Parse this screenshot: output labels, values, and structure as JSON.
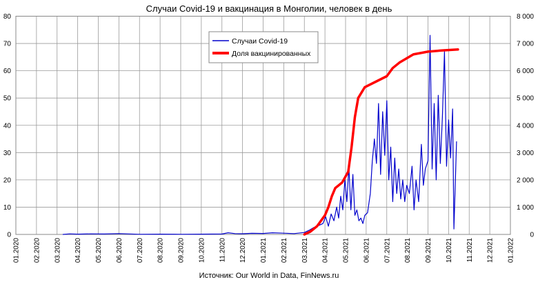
{
  "chart_data": {
    "type": "line",
    "title": "Случаи Covid-19 и вакцинация в Монголии, человек в день",
    "source": "Источник: Our World in Data, FinNews.ru",
    "grid": true,
    "legend_position": "top-center",
    "x_tick_labels": [
      "01.2020",
      "02.2020",
      "03.2020",
      "04.2020",
      "05.2020",
      "06.2020",
      "07.2020",
      "08.2020",
      "09.2020",
      "10.2020",
      "11.2020",
      "12.2020",
      "01.2021",
      "02.2021",
      "03.2021",
      "04.2021",
      "05.2021",
      "06.2021",
      "07.2021",
      "08.2021",
      "09.2021",
      "10.2021",
      "11.2021",
      "12.2021",
      "01.2022"
    ],
    "y_left": {
      "ylim": [
        0,
        80
      ],
      "ticks": [
        "0",
        "10",
        "20",
        "30",
        "40",
        "50",
        "60",
        "70",
        "80"
      ]
    },
    "y_right": {
      "ylim": [
        0,
        8000
      ],
      "ticks": [
        "0",
        "1 000",
        "2 000",
        "3 000",
        "4 000",
        "5 000",
        "6 000",
        "7 000",
        "8 000"
      ]
    },
    "series": [
      {
        "name": "Случаи Covid-19",
        "axis": "right",
        "color": "#0000cc",
        "points": [
          [
            "2020-03-10",
            0
          ],
          [
            "2020-03-20",
            20
          ],
          [
            "2020-04-01",
            10
          ],
          [
            "2020-04-20",
            20
          ],
          [
            "2020-05-10",
            15
          ],
          [
            "2020-06-01",
            30
          ],
          [
            "2020-07-01",
            5
          ],
          [
            "2020-08-01",
            10
          ],
          [
            "2020-09-01",
            5
          ],
          [
            "2020-10-01",
            10
          ],
          [
            "2020-11-01",
            15
          ],
          [
            "2020-11-10",
            60
          ],
          [
            "2020-11-20",
            30
          ],
          [
            "2020-12-01",
            25
          ],
          [
            "2020-12-15",
            40
          ],
          [
            "2021-01-01",
            35
          ],
          [
            "2021-01-15",
            60
          ],
          [
            "2021-02-01",
            45
          ],
          [
            "2021-02-15",
            30
          ],
          [
            "2021-03-01",
            70
          ],
          [
            "2021-03-08",
            150
          ],
          [
            "2021-03-15",
            250
          ],
          [
            "2021-03-22",
            320
          ],
          [
            "2021-03-29",
            400
          ],
          [
            "2021-04-02",
            650
          ],
          [
            "2021-04-06",
            300
          ],
          [
            "2021-04-10",
            750
          ],
          [
            "2021-04-14",
            500
          ],
          [
            "2021-04-18",
            1000
          ],
          [
            "2021-04-21",
            600
          ],
          [
            "2021-04-24",
            1400
          ],
          [
            "2021-04-27",
            900
          ],
          [
            "2021-04-30",
            2000
          ],
          [
            "2021-05-03",
            1200
          ],
          [
            "2021-05-06",
            2500
          ],
          [
            "2021-05-09",
            900
          ],
          [
            "2021-05-12",
            2200
          ],
          [
            "2021-05-15",
            700
          ],
          [
            "2021-05-18",
            900
          ],
          [
            "2021-05-21",
            500
          ],
          [
            "2021-05-24",
            600
          ],
          [
            "2021-05-27",
            400
          ],
          [
            "2021-05-30",
            700
          ],
          [
            "2021-06-03",
            800
          ],
          [
            "2021-06-07",
            1500
          ],
          [
            "2021-06-10",
            2700
          ],
          [
            "2021-06-13",
            3500
          ],
          [
            "2021-06-16",
            2600
          ],
          [
            "2021-06-19",
            4800
          ],
          [
            "2021-06-22",
            2200
          ],
          [
            "2021-06-25",
            4500
          ],
          [
            "2021-06-28",
            2900
          ],
          [
            "2021-07-01",
            4900
          ],
          [
            "2021-07-04",
            2000
          ],
          [
            "2021-07-07",
            3200
          ],
          [
            "2021-07-10",
            1200
          ],
          [
            "2021-07-13",
            2800
          ],
          [
            "2021-07-16",
            1500
          ],
          [
            "2021-07-19",
            2400
          ],
          [
            "2021-07-22",
            1300
          ],
          [
            "2021-07-25",
            2000
          ],
          [
            "2021-07-28",
            1200
          ],
          [
            "2021-07-31",
            1800
          ],
          [
            "2021-08-04",
            1500
          ],
          [
            "2021-08-08",
            2500
          ],
          [
            "2021-08-11",
            900
          ],
          [
            "2021-08-14",
            2000
          ],
          [
            "2021-08-18",
            1200
          ],
          [
            "2021-08-22",
            3300
          ],
          [
            "2021-08-25",
            1800
          ],
          [
            "2021-08-28",
            2400
          ],
          [
            "2021-09-01",
            2700
          ],
          [
            "2021-09-04",
            7300
          ],
          [
            "2021-09-07",
            2400
          ],
          [
            "2021-09-10",
            4800
          ],
          [
            "2021-09-13",
            2000
          ],
          [
            "2021-09-16",
            5100
          ],
          [
            "2021-09-19",
            2600
          ],
          [
            "2021-09-22",
            4300
          ],
          [
            "2021-09-25",
            6700
          ],
          [
            "2021-09-28",
            2500
          ],
          [
            "2021-10-01",
            4200
          ],
          [
            "2021-10-04",
            2800
          ],
          [
            "2021-10-07",
            4600
          ],
          [
            "2021-10-09",
            200
          ],
          [
            "2021-10-11",
            1800
          ],
          [
            "2021-10-13",
            3400
          ]
        ]
      },
      {
        "name": "Доля вакцинированных",
        "axis": "left",
        "color": "#ff0000",
        "points": [
          [
            "2021-03-01",
            0
          ],
          [
            "2021-03-10",
            1
          ],
          [
            "2021-03-20",
            3
          ],
          [
            "2021-04-01",
            7
          ],
          [
            "2021-04-06",
            10
          ],
          [
            "2021-04-11",
            14
          ],
          [
            "2021-04-16",
            17
          ],
          [
            "2021-04-26",
            19
          ],
          [
            "2021-05-05",
            23
          ],
          [
            "2021-05-10",
            32
          ],
          [
            "2021-05-15",
            43
          ],
          [
            "2021-05-20",
            50
          ],
          [
            "2021-05-30",
            54
          ],
          [
            "2021-06-15",
            56
          ],
          [
            "2021-07-01",
            58
          ],
          [
            "2021-07-10",
            61
          ],
          [
            "2021-07-20",
            63
          ],
          [
            "2021-08-10",
            66
          ],
          [
            "2021-09-01",
            67
          ],
          [
            "2021-09-20",
            67.4
          ],
          [
            "2021-10-15",
            67.8
          ]
        ]
      }
    ]
  }
}
